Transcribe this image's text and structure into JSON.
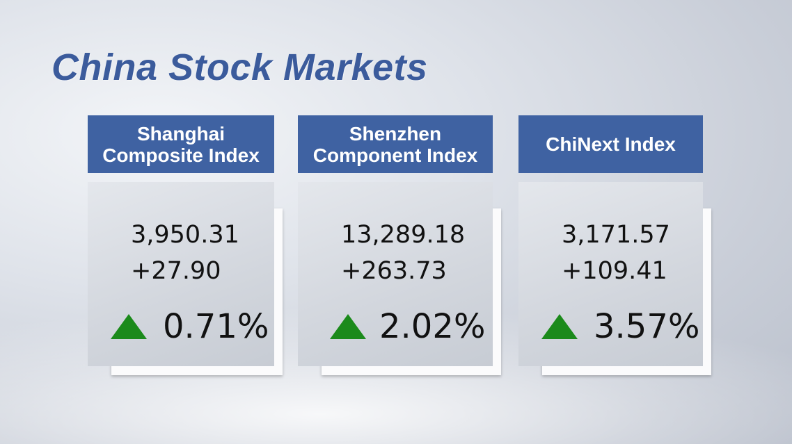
{
  "title": "China Stock Markets",
  "cards": [
    {
      "name": [
        "Shanghai",
        "Composite Index"
      ],
      "value": "3,950.31",
      "change": "+27.90",
      "percent": "0.71%"
    },
    {
      "name": [
        "Shenzhen",
        "Component Index"
      ],
      "value": "13,289.18",
      "change": "+263.73",
      "percent": "2.02%"
    },
    {
      "name": [
        "ChiNext Index"
      ],
      "value": "3,171.57",
      "change": "+109.41",
      "percent": "3.57%"
    }
  ]
}
